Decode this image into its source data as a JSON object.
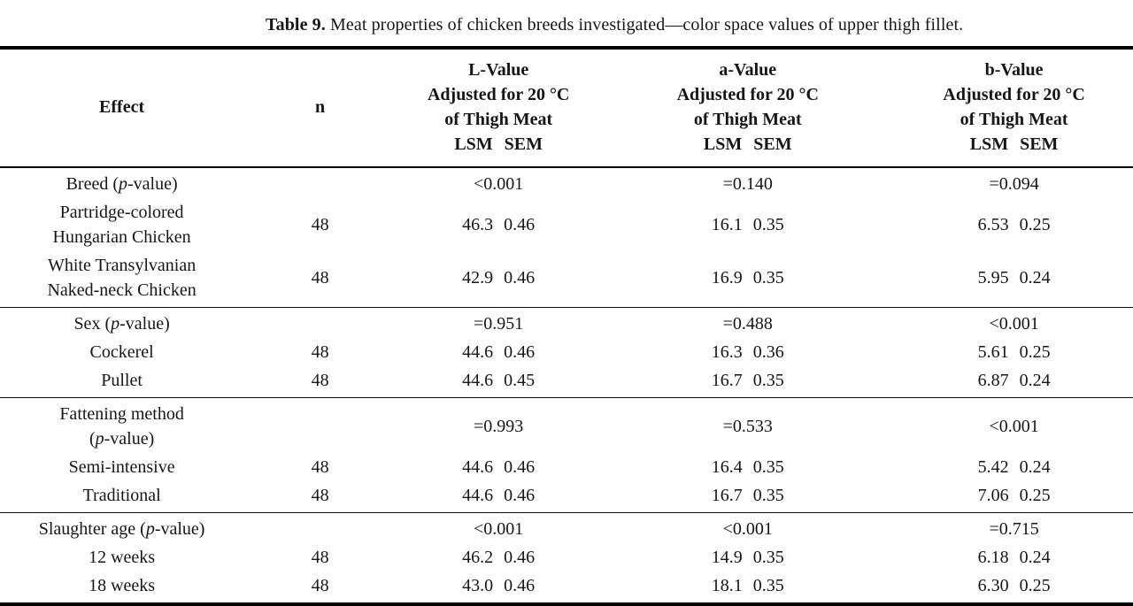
{
  "caption": {
    "label": "Table 9.",
    "text": "Meat properties of chicken breeds investigated—color space values of upper thigh fillet."
  },
  "table": {
    "columns": {
      "effect": "Effect",
      "n": "n",
      "l": {
        "name": "L-Value",
        "sub1": "Adjusted for 20 °C",
        "sub2": "of Thigh Meat",
        "lsm": "LSM",
        "sem": "SEM"
      },
      "a": {
        "name": "a-Value",
        "sub1": "Adjusted for 20 °C",
        "sub2": "of Thigh Meat",
        "lsm": "LSM",
        "sem": "SEM"
      },
      "b": {
        "name": "b-Value",
        "sub1": "Adjusted for 20 °C",
        "sub2": "of Thigh Meat",
        "lsm": "LSM",
        "sem": "SEM"
      }
    },
    "sections": [
      {
        "name": "breed",
        "rows": [
          {
            "effect_pre": "Breed (",
            "p": "p",
            "effect_post": "-value)",
            "l": "<0.001",
            "a": "=0.140",
            "b": "=0.094"
          },
          {
            "effect_line1": "Partridge-colored",
            "effect_line2": "Hungarian Chicken",
            "n": "48",
            "l_lsm": "46.3",
            "l_sem": "0.46",
            "a_lsm": "16.1",
            "a_sem": "0.35",
            "b_lsm": "6.53",
            "b_sem": "0.25"
          },
          {
            "effect_line1": "White Transylvanian",
            "effect_line2": "Naked-neck Chicken",
            "n": "48",
            "l_lsm": "42.9",
            "l_sem": "0.46",
            "a_lsm": "16.9",
            "a_sem": "0.35",
            "b_lsm": "5.95",
            "b_sem": "0.24"
          }
        ]
      },
      {
        "name": "sex",
        "rows": [
          {
            "effect_pre": "Sex (",
            "p": "p",
            "effect_post": "-value)",
            "l": "=0.951",
            "a": "=0.488",
            "b": "<0.001"
          },
          {
            "effect": "Cockerel",
            "n": "48",
            "l_lsm": "44.6",
            "l_sem": "0.46",
            "a_lsm": "16.3",
            "a_sem": "0.36",
            "b_lsm": "5.61",
            "b_sem": "0.25"
          },
          {
            "effect": "Pullet",
            "n": "48",
            "l_lsm": "44.6",
            "l_sem": "0.45",
            "a_lsm": "16.7",
            "a_sem": "0.35",
            "b_lsm": "6.87",
            "b_sem": "0.24"
          }
        ]
      },
      {
        "name": "fattening-method",
        "rows": [
          {
            "effect_line1": "Fattening method",
            "effect_pre": "(",
            "p": "p",
            "effect_post": "-value)",
            "l": "=0.993",
            "a": "=0.533",
            "b": "<0.001"
          },
          {
            "effect": "Semi-intensive",
            "n": "48",
            "l_lsm": "44.6",
            "l_sem": "0.46",
            "a_lsm": "16.4",
            "a_sem": "0.35",
            "b_lsm": "5.42",
            "b_sem": "0.24"
          },
          {
            "effect": "Traditional",
            "n": "48",
            "l_lsm": "44.6",
            "l_sem": "0.46",
            "a_lsm": "16.7",
            "a_sem": "0.35",
            "b_lsm": "7.06",
            "b_sem": "0.25"
          }
        ]
      },
      {
        "name": "slaughter-age",
        "rows": [
          {
            "effect_pre": "Slaughter age (",
            "p": "p",
            "effect_post": "-value)",
            "l": "<0.001",
            "a": "<0.001",
            "b": "=0.715"
          },
          {
            "effect": "12 weeks",
            "n": "48",
            "l_lsm": "46.2",
            "l_sem": "0.46",
            "a_lsm": "14.9",
            "a_sem": "0.35",
            "b_lsm": "6.18",
            "b_sem": "0.24"
          },
          {
            "effect": "18 weeks",
            "n": "48",
            "l_lsm": "43.0",
            "l_sem": "0.46",
            "a_lsm": "18.1",
            "a_sem": "0.35",
            "b_lsm": "6.30",
            "b_sem": "0.25"
          }
        ]
      }
    ]
  }
}
